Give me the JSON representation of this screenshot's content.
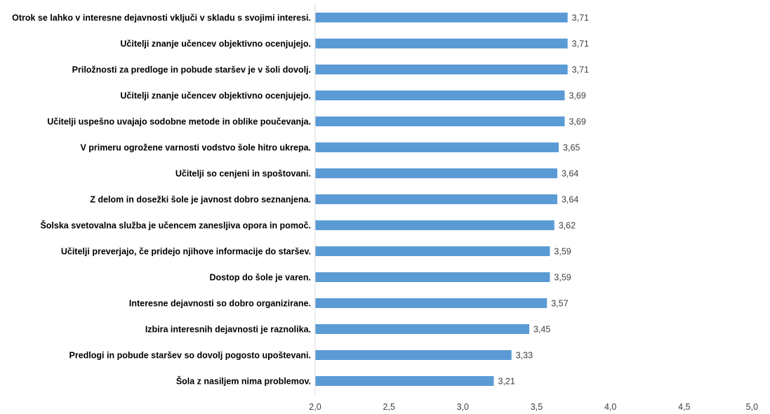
{
  "chart_data": {
    "type": "bar",
    "orientation": "horizontal",
    "categories": [
      "Otrok se lahko v interesne dejavnosti vključi v skladu s svojimi interesi.",
      "Učitelji znanje učencev objektivno ocenjujejo.",
      "Priložnosti za predloge in pobude staršev je v šoli dovolj.",
      "Učitelji znanje učencev objektivno ocenjujejo.",
      "Učitelji uspešno uvajajo sodobne metode in oblike poučevanja.",
      "V primeru ogrožene varnosti vodstvo šole hitro ukrepa.",
      "Učitelji so cenjeni in spoštovani.",
      "Z delom in dosežki šole je javnost dobro seznanjena.",
      "Šolska svetovalna služba je učencem zanesljiva opora in pomoč.",
      "Učitelji preverjajo, če pridejo njihove informacije do staršev.",
      "Dostop do šole je varen.",
      "Interesne dejavnosti so dobro organizirane.",
      "Izbira interesnih dejavnosti je raznolika.",
      "Predlogi in pobude staršev so dovolj pogosto upoštevani.",
      "Šola z nasiljem nima problemov."
    ],
    "values": [
      3.71,
      3.71,
      3.71,
      3.69,
      3.69,
      3.65,
      3.64,
      3.64,
      3.62,
      3.59,
      3.59,
      3.57,
      3.45,
      3.33,
      3.21
    ],
    "value_labels": [
      "3,71",
      "3,71",
      "3,71",
      "3,69",
      "3,69",
      "3,65",
      "3,64",
      "3,64",
      "3,62",
      "3,59",
      "3,59",
      "3,57",
      "3,45",
      "3,33",
      "3,21"
    ],
    "xlim": [
      2.0,
      5.0
    ],
    "x_ticks": [
      2.0,
      2.5,
      3.0,
      3.5,
      4.0,
      4.5,
      5.0
    ],
    "x_tick_labels": [
      "2,0",
      "2,5",
      "3,0",
      "3,5",
      "4,0",
      "4,5",
      "5,0"
    ],
    "title": "",
    "xlabel": "",
    "ylabel": "",
    "grid": false,
    "legend": "none",
    "bar_color": "#5b9bd5"
  }
}
